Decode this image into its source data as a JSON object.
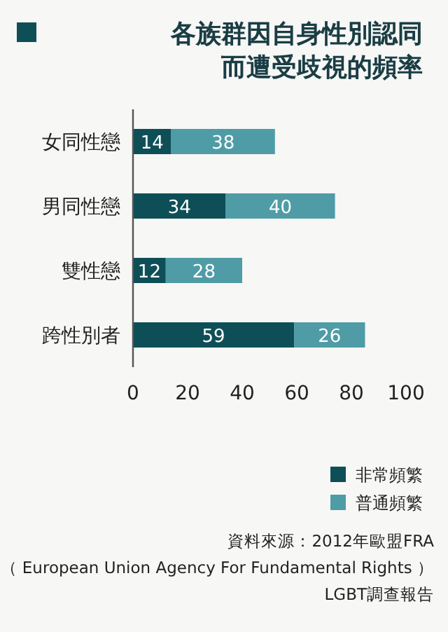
{
  "chart_data": {
    "type": "bar",
    "orientation": "horizontal",
    "stacked": true,
    "title": "各族群因自身性別認同而遭受歧視的頻率",
    "categories": [
      "女同性戀",
      "男同性戀",
      "雙性戀",
      "跨性別者"
    ],
    "series": [
      {
        "name": "非常頻繁",
        "color": "#0e4f57",
        "values": [
          14,
          34,
          12,
          59
        ]
      },
      {
        "name": "普通頻繁",
        "color": "#4f9ca6",
        "values": [
          38,
          40,
          28,
          26
        ]
      }
    ],
    "xlim": [
      0,
      100
    ],
    "xticks": [
      0,
      20,
      40,
      60,
      80,
      100
    ],
    "data_labels": true,
    "legend": "bottom right",
    "grid": false,
    "annotations": [
      "資料來源：2012年歐盟FRA",
      "（ European Union Agency For Fundamental Rights ）",
      "LGBT調查報告"
    ]
  }
}
